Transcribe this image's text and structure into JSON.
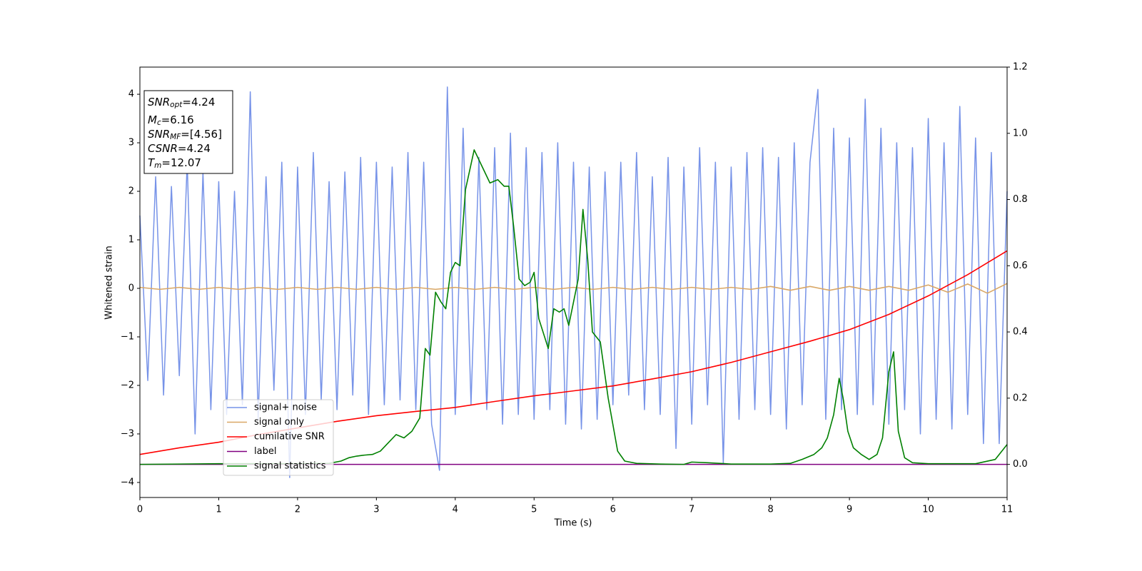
{
  "chart_data": {
    "type": "line",
    "xlabel": "Time (s)",
    "ylabel": "Whitened strain",
    "xlim": [
      0,
      11
    ],
    "ylim": [
      -4.31,
      4.56
    ],
    "y2lim": [
      -0.1,
      1.2
    ],
    "xticks": [
      0,
      1,
      2,
      3,
      4,
      5,
      6,
      7,
      8,
      9,
      10,
      11
    ],
    "yticks": [
      {
        "value": -4,
        "label": "−4"
      },
      {
        "value": -3,
        "label": "−3"
      },
      {
        "value": -2,
        "label": "−2"
      },
      {
        "value": -1,
        "label": "−1"
      },
      0,
      1,
      2,
      3,
      4
    ],
    "y2ticks": [
      {
        "value": 0,
        "label": "0.0"
      },
      {
        "value": 0.2,
        "label": "0.2"
      },
      {
        "value": 0.4,
        "label": "0.4"
      },
      {
        "value": 0.6,
        "label": "0.6"
      },
      {
        "value": 0.8,
        "label": "0.8"
      },
      {
        "value": 1.0,
        "label": "1.0"
      },
      {
        "value": 1.2,
        "label": "1.2"
      }
    ],
    "legend": "lower left",
    "annotations": [
      {
        "main": "SNR",
        "sub": "opt",
        "rest": "=4.24"
      },
      {
        "main": "M",
        "sub": "c",
        "rest": "=6.16"
      },
      {
        "main": "SNR",
        "sub": "MF",
        "rest": "=[4.56]"
      },
      {
        "main": "CSNR",
        "rest": "=4.24"
      },
      {
        "main": "T",
        "sub": "m",
        "rest": "=12.07"
      }
    ],
    "series": [
      {
        "name": "signal+ noise",
        "color": "#7793e8",
        "x": [
          0,
          0.1,
          0.2,
          0.3,
          0.4,
          0.5,
          0.6,
          0.7,
          0.8,
          0.9,
          1,
          1.1,
          1.2,
          1.3,
          1.4,
          1.5,
          1.6,
          1.7,
          1.8,
          1.9,
          2,
          2.1,
          2.2,
          2.3,
          2.4,
          2.5,
          2.6,
          2.7,
          2.8,
          2.9,
          3,
          3.1,
          3.2,
          3.3,
          3.4,
          3.5,
          3.6,
          3.7,
          3.8,
          3.9,
          4,
          4.1,
          4.2,
          4.3,
          4.4,
          4.5,
          4.6,
          4.7,
          4.8,
          4.9,
          5,
          5.1,
          5.2,
          5.3,
          5.4,
          5.5,
          5.6,
          5.7,
          5.8,
          5.9,
          6,
          6.1,
          6.2,
          6.3,
          6.4,
          6.5,
          6.6,
          6.7,
          6.8,
          6.9,
          7,
          7.1,
          7.2,
          7.3,
          7.4,
          7.5,
          7.6,
          7.7,
          7.8,
          7.9,
          8,
          8.1,
          8.2,
          8.3,
          8.4,
          8.5,
          8.6,
          8.7,
          8.8,
          8.9,
          9,
          9.1,
          9.2,
          9.3,
          9.4,
          9.5,
          9.6,
          9.7,
          9.8,
          9.9,
          10,
          10.1,
          10.2,
          10.3,
          10.4,
          10.5,
          10.6,
          10.7,
          10.8,
          10.9,
          11
        ],
        "values": [
          1.5,
          -1.9,
          2.3,
          -2.2,
          2.1,
          -1.8,
          2.6,
          -3.0,
          2.4,
          -2.5,
          2.2,
          -2.6,
          2.0,
          -2.4,
          4.05,
          -2.7,
          2.3,
          -2.1,
          2.6,
          -3.9,
          2.5,
          -2.6,
          2.8,
          -2.3,
          2.2,
          -2.5,
          2.4,
          -2.2,
          2.7,
          -2.6,
          2.6,
          -2.4,
          2.5,
          -2.3,
          2.8,
          -2.5,
          2.6,
          -2.8,
          -3.75,
          4.15,
          -2.6,
          3.3,
          -2.4,
          2.7,
          -2.5,
          2.9,
          -2.8,
          3.2,
          -2.6,
          2.9,
          -2.7,
          2.8,
          -2.5,
          3.0,
          -2.8,
          2.6,
          -2.9,
          2.5,
          -2.7,
          2.4,
          -2.4,
          2.6,
          -2.2,
          2.8,
          -2.5,
          2.3,
          -2.6,
          2.7,
          -3.3,
          2.5,
          -2.8,
          2.9,
          -2.4,
          2.6,
          -3.6,
          2.5,
          -2.7,
          2.8,
          -2.5,
          2.9,
          -2.6,
          2.7,
          -2.9,
          3.0,
          -2.4,
          2.6,
          4.1,
          -2.7,
          3.3,
          -2.5,
          3.1,
          -2.6,
          3.9,
          -2.4,
          3.3,
          -2.8,
          3.0,
          -2.5,
          2.9,
          -3.0,
          3.5,
          -2.7,
          3.0,
          -2.9,
          3.75,
          -2.6,
          3.1,
          -3.2,
          2.8,
          -3.2,
          2.0
        ]
      },
      {
        "name": "signal only",
        "color": "#d9a766",
        "x": [
          0,
          0.25,
          0.5,
          0.75,
          1,
          1.25,
          1.5,
          1.75,
          2,
          2.25,
          2.5,
          2.75,
          3,
          3.25,
          3.5,
          3.75,
          4,
          4.25,
          4.5,
          4.75,
          5,
          5.25,
          5.5,
          5.75,
          6,
          6.25,
          6.5,
          6.75,
          7,
          7.25,
          7.5,
          7.75,
          8,
          8.25,
          8.5,
          8.75,
          9,
          9.25,
          9.5,
          9.75,
          10,
          10.25,
          10.5,
          10.75,
          11
        ],
        "values": [
          0.02,
          -0.02,
          0.02,
          -0.02,
          0.02,
          -0.02,
          0.02,
          -0.02,
          0.02,
          -0.02,
          0.02,
          -0.02,
          0.02,
          -0.02,
          0.02,
          -0.02,
          0.02,
          -0.02,
          0.02,
          -0.02,
          0.02,
          -0.02,
          0.02,
          -0.02,
          0.02,
          -0.02,
          0.02,
          -0.02,
          0.02,
          -0.02,
          0.02,
          -0.02,
          0.04,
          -0.04,
          0.04,
          -0.04,
          0.04,
          -0.04,
          0.04,
          -0.04,
          0.07,
          -0.08,
          0.09,
          -0.1,
          0.1
        ]
      },
      {
        "name": "cumilative SNR",
        "color": "#ff0000",
        "axis": "y2",
        "x": [
          0,
          0.5,
          1,
          1.5,
          2,
          2.5,
          3,
          3.5,
          4,
          4.5,
          5,
          5.5,
          6,
          6.5,
          7,
          7.5,
          8,
          8.5,
          9,
          9.5,
          10,
          10.5,
          11
        ],
        "values": [
          0.03,
          0.05,
          0.067,
          0.09,
          0.11,
          0.13,
          0.147,
          0.16,
          0.172,
          0.19,
          0.207,
          0.222,
          0.237,
          0.258,
          0.28,
          0.308,
          0.34,
          0.372,
          0.407,
          0.453,
          0.509,
          0.573,
          0.645
        ]
      },
      {
        "name": "label",
        "color": "#800080",
        "axis": "y2",
        "x": [
          0,
          11
        ],
        "values": [
          0,
          0
        ]
      },
      {
        "name": "signal statistics",
        "color": "#008000",
        "axis": "y2",
        "x": [
          0,
          1,
          2,
          2.4,
          2.55,
          2.65,
          2.75,
          2.85,
          2.95,
          3.05,
          3.15,
          3.25,
          3.35,
          3.45,
          3.55,
          3.62,
          3.68,
          3.75,
          3.82,
          3.88,
          3.94,
          4.0,
          4.06,
          4.13,
          4.24,
          4.34,
          4.44,
          4.54,
          4.62,
          4.68,
          4.74,
          4.81,
          4.88,
          4.95,
          5.0,
          5.06,
          5.18,
          5.25,
          5.32,
          5.38,
          5.44,
          5.5,
          5.56,
          5.62,
          5.68,
          5.74,
          5.84,
          5.94,
          6.06,
          6.15,
          6.3,
          6.6,
          6.9,
          7.0,
          7.2,
          7.5,
          8.0,
          8.25,
          8.4,
          8.55,
          8.65,
          8.72,
          8.8,
          8.87,
          8.92,
          8.98,
          9.05,
          9.15,
          9.25,
          9.35,
          9.42,
          9.5,
          9.56,
          9.62,
          9.7,
          9.8,
          10.0,
          10.6,
          10.85,
          11.0
        ],
        "values": [
          0,
          0.002,
          0.002,
          0.003,
          0.01,
          0.02,
          0.025,
          0.028,
          0.03,
          0.04,
          0.065,
          0.09,
          0.08,
          0.1,
          0.14,
          0.35,
          0.33,
          0.52,
          0.49,
          0.47,
          0.58,
          0.61,
          0.6,
          0.83,
          0.95,
          0.9,
          0.85,
          0.86,
          0.84,
          0.84,
          0.72,
          0.56,
          0.54,
          0.55,
          0.58,
          0.44,
          0.35,
          0.47,
          0.46,
          0.47,
          0.42,
          0.49,
          0.56,
          0.77,
          0.62,
          0.4,
          0.37,
          0.2,
          0.04,
          0.01,
          0.003,
          0.001,
          0.0,
          0.007,
          0.005,
          0.001,
          0.001,
          0.003,
          0.015,
          0.03,
          0.05,
          0.08,
          0.15,
          0.26,
          0.2,
          0.1,
          0.05,
          0.03,
          0.015,
          0.03,
          0.08,
          0.28,
          0.34,
          0.1,
          0.02,
          0.005,
          0.002,
          0.002,
          0.015,
          0.06
        ]
      }
    ]
  }
}
